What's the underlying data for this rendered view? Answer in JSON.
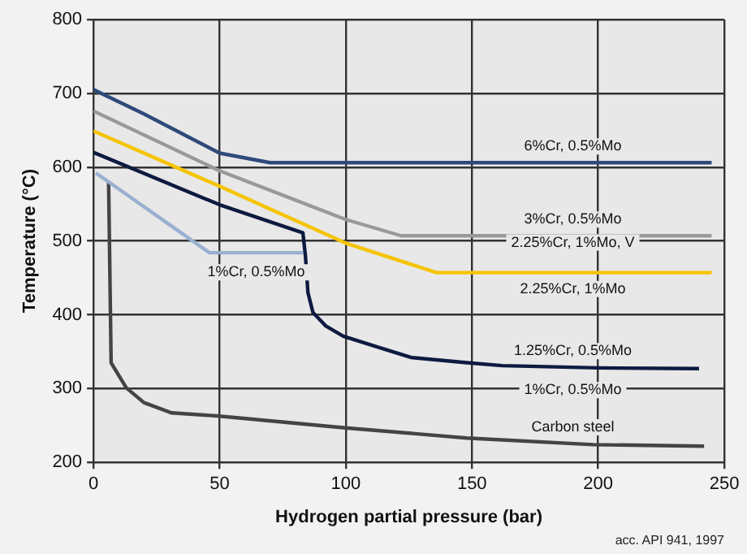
{
  "chart_data": {
    "type": "line",
    "xlabel": "Hydrogen partial pressure (bar)",
    "ylabel": "Temperature (°C)",
    "xlim": [
      0,
      250
    ],
    "xticks": [
      0,
      50,
      100,
      150,
      200,
      250
    ],
    "ylim": [
      200,
      800
    ],
    "yticks": [
      200,
      300,
      400,
      500,
      600,
      700,
      800
    ],
    "grid": true,
    "legend": false,
    "marker": "none",
    "series": [
      {
        "name": "6%Cr, 0.5%Mo",
        "color": "#2e4a7a",
        "x": [
          0,
          20,
          50,
          70,
          245
        ],
        "values": [
          705,
          672,
          619,
          606,
          606
        ]
      },
      {
        "name": "3%Cr, 0.5%Mo",
        "color": "#999999",
        "x": [
          0,
          50,
          100,
          122,
          245
        ],
        "values": [
          676,
          595,
          529,
          507,
          507
        ]
      },
      {
        "name": "2.25%Cr, 1%Mo",
        "color": "#f5c400",
        "x": [
          0,
          50,
          100,
          136,
          245
        ],
        "values": [
          649,
          574,
          497,
          457,
          457
        ]
      },
      {
        "name": "1.25%Cr, 0.5%Mo",
        "color": "#0d1a40",
        "x": [
          0,
          50,
          83,
          84,
          85,
          87,
          92,
          99,
          112,
          126,
          148,
          162,
          200,
          240
        ],
        "values": [
          620,
          549,
          511,
          480,
          430,
          403,
          385,
          371,
          357,
          342,
          335,
          331,
          328,
          327
        ]
      },
      {
        "name": "1%Cr, 0.5%Mo",
        "color": "#9ab0d0",
        "x": [
          1,
          46,
          83
        ],
        "values": [
          592,
          484,
          484
        ]
      },
      {
        "name": "Carbon steel",
        "color": "#444444",
        "x": [
          6,
          7,
          13,
          20,
          31,
          49,
          99,
          148,
          198,
          242
        ],
        "values": [
          580,
          335,
          301,
          281,
          267,
          263,
          247,
          233,
          224,
          222
        ]
      }
    ],
    "annotations": [
      "2.25%Cr, 1%Mo, V",
      "1%Cr, 0.5%Mo",
      "acc. API 941, 1997"
    ]
  }
}
